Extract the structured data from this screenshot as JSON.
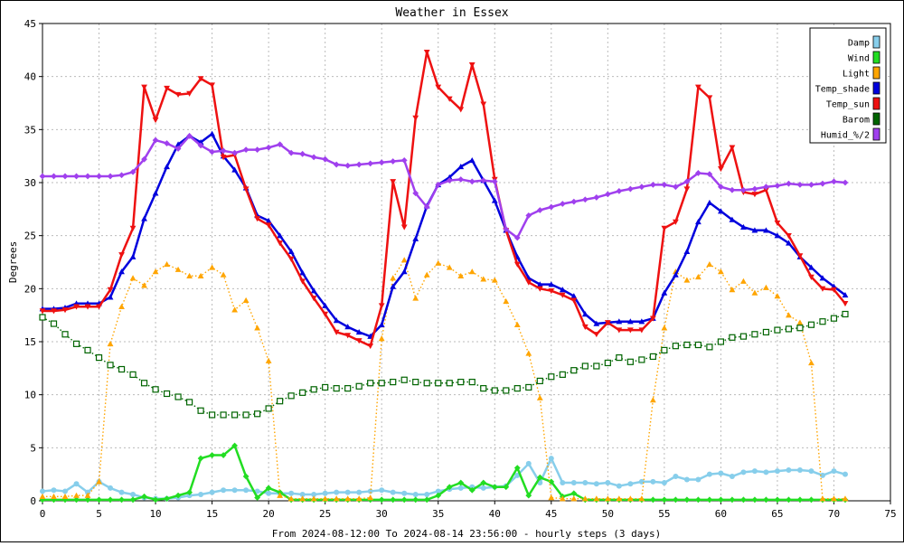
{
  "chart_data": {
    "type": "line",
    "title": "Weather in Essex",
    "ylabel": "Degrees",
    "xlabel": "From 2024-08-12:00 To 2024-08-14 23:56:00 - hourly steps (3 days)",
    "xlim": [
      0,
      75
    ],
    "ylim": [
      0,
      45
    ],
    "xticks": [
      0,
      5,
      10,
      15,
      20,
      25,
      30,
      35,
      40,
      45,
      50,
      55,
      60,
      65,
      70,
      75
    ],
    "yticks": [
      0,
      5,
      10,
      15,
      20,
      25,
      30,
      35,
      40,
      45
    ],
    "grid": true,
    "legend_position": "top-right",
    "x": [
      0,
      1,
      2,
      3,
      4,
      5,
      6,
      7,
      8,
      9,
      10,
      11,
      12,
      13,
      14,
      15,
      16,
      17,
      18,
      19,
      20,
      21,
      22,
      23,
      24,
      25,
      26,
      27,
      28,
      29,
      30,
      31,
      32,
      33,
      34,
      35,
      36,
      37,
      38,
      39,
      40,
      41,
      42,
      43,
      44,
      45,
      46,
      47,
      48,
      49,
      50,
      51,
      52,
      53,
      54,
      55,
      56,
      57,
      58,
      59,
      60,
      61,
      62,
      63,
      64,
      65,
      66,
      67,
      68,
      69,
      70,
      71
    ],
    "series": [
      {
        "name": "Damp",
        "color": "#87ceeb",
        "marker": "circle",
        "line": "solid",
        "values": [
          0.9,
          1.0,
          0.9,
          1.6,
          0.8,
          1.8,
          1.2,
          0.8,
          0.6,
          0.3,
          0.2,
          0.2,
          0.3,
          0.5,
          0.6,
          0.8,
          1.0,
          1.0,
          1.0,
          0.9,
          0.7,
          0.7,
          0.7,
          0.6,
          0.6,
          0.7,
          0.8,
          0.8,
          0.8,
          0.9,
          1.0,
          0.8,
          0.7,
          0.6,
          0.6,
          0.9,
          1.1,
          1.2,
          1.3,
          1.2,
          1.3,
          1.4,
          2.4,
          3.5,
          1.7,
          4.0,
          1.7,
          1.7,
          1.7,
          1.6,
          1.7,
          1.4,
          1.6,
          1.8,
          1.8,
          1.7,
          2.3,
          2.0,
          2.0,
          2.5,
          2.6,
          2.3,
          2.7,
          2.8,
          2.7,
          2.8,
          2.9,
          2.9,
          2.8,
          2.4,
          2.8,
          2.5
        ]
      },
      {
        "name": "Wind",
        "color": "#22dd22",
        "marker": "diamond",
        "line": "solid",
        "values": [
          0.1,
          0.1,
          0.1,
          0.1,
          0.1,
          0.1,
          0.1,
          0.1,
          0.1,
          0.4,
          0.1,
          0.2,
          0.5,
          0.8,
          4.0,
          4.3,
          4.3,
          5.2,
          2.3,
          0.3,
          1.2,
          0.8,
          0.1,
          0.1,
          0.1,
          0.1,
          0.1,
          0.1,
          0.1,
          0.1,
          0.1,
          0.1,
          0.1,
          0.1,
          0.1,
          0.5,
          1.3,
          1.7,
          1.0,
          1.7,
          1.3,
          1.3,
          3.1,
          0.5,
          2.2,
          1.8,
          0.4,
          0.7,
          0.1,
          0.1,
          0.1,
          0.1,
          0.1,
          0.1,
          0.1,
          0.1,
          0.1,
          0.1,
          0.1,
          0.1,
          0.1,
          0.1,
          0.1,
          0.1,
          0.1,
          0.1,
          0.1,
          0.1,
          0.1,
          0.1,
          0.1,
          0.1
        ]
      },
      {
        "name": "Light",
        "color": "#ffa500",
        "marker": "triangle-up",
        "line": "dotted",
        "values": [
          0.4,
          0.4,
          0.4,
          0.5,
          0.5,
          1.8,
          14.8,
          18.3,
          21.0,
          20.3,
          21.6,
          22.3,
          21.8,
          21.2,
          21.2,
          22.0,
          21.3,
          18.0,
          18.9,
          16.3,
          13.2,
          0.5,
          0.2,
          0.2,
          0.2,
          0.2,
          0.2,
          0.2,
          0.2,
          0.3,
          15.3,
          21.0,
          22.7,
          19.1,
          21.3,
          22.4,
          22.0,
          21.2,
          21.6,
          20.9,
          20.8,
          18.8,
          16.6,
          13.9,
          9.7,
          0.3,
          0.2,
          0.2,
          0.2,
          0.2,
          0.2,
          0.2,
          0.2,
          0.2,
          9.5,
          16.3,
          21.6,
          20.8,
          21.1,
          22.3,
          21.6,
          19.9,
          20.7,
          19.6,
          20.1,
          19.3,
          17.5,
          16.8,
          13.0,
          0.2,
          0.2,
          0.2
        ]
      },
      {
        "name": "Temp_shade",
        "color": "#0000dd",
        "marker": "triangle-up",
        "line": "solid",
        "values": [
          18.1,
          18.1,
          18.2,
          18.6,
          18.6,
          18.6,
          19.2,
          21.6,
          23.0,
          26.6,
          29.0,
          31.5,
          33.6,
          34.4,
          33.8,
          34.6,
          32.5,
          31.2,
          29.5,
          26.9,
          26.4,
          25.0,
          23.5,
          21.5,
          19.8,
          18.4,
          17.0,
          16.4,
          15.9,
          15.5,
          16.6,
          20.2,
          21.6,
          24.7,
          27.8,
          29.8,
          30.5,
          31.5,
          32.1,
          30.2,
          28.3,
          25.5,
          23.0,
          21.0,
          20.4,
          20.4,
          19.9,
          19.3,
          17.6,
          16.7,
          16.8,
          16.9,
          16.9,
          16.9,
          17.2,
          19.6,
          21.3,
          23.5,
          26.3,
          28.1,
          27.3,
          26.5,
          25.8,
          25.5,
          25.5,
          25.0,
          24.3,
          23.0,
          22.0,
          21.0,
          20.2,
          19.4
        ]
      },
      {
        "name": "Temp_sun",
        "color": "#ee1111",
        "marker": "triangle-down",
        "line": "solid",
        "values": [
          17.9,
          17.9,
          18.0,
          18.3,
          18.3,
          18.3,
          19.9,
          23.2,
          25.7,
          39.0,
          35.9,
          38.9,
          38.3,
          38.4,
          39.8,
          39.2,
          32.4,
          32.6,
          29.4,
          26.6,
          26.0,
          24.3,
          22.8,
          20.7,
          19.1,
          17.6,
          15.9,
          15.6,
          15.1,
          14.6,
          18.4,
          30.1,
          25.8,
          36.1,
          42.3,
          39.0,
          37.9,
          36.9,
          41.1,
          37.4,
          30.3,
          25.5,
          22.3,
          20.6,
          20.0,
          19.8,
          19.4,
          18.9,
          16.4,
          15.7,
          16.8,
          16.1,
          16.1,
          16.1,
          17.2,
          25.7,
          26.3,
          29.4,
          39.0,
          38.0,
          31.3,
          33.3,
          29.1,
          28.9,
          29.3,
          26.2,
          25.0,
          23.1,
          21.1,
          20.0,
          19.9,
          18.6
        ]
      },
      {
        "name": "Barom",
        "color": "#006400",
        "marker": "square",
        "line": "dotted",
        "values": [
          17.3,
          16.7,
          15.7,
          14.8,
          14.2,
          13.5,
          12.8,
          12.4,
          11.9,
          11.1,
          10.5,
          10.1,
          9.8,
          9.3,
          8.5,
          8.1,
          8.1,
          8.1,
          8.1,
          8.2,
          8.7,
          9.4,
          9.9,
          10.2,
          10.5,
          10.7,
          10.6,
          10.6,
          10.8,
          11.1,
          11.1,
          11.2,
          11.4,
          11.2,
          11.1,
          11.1,
          11.1,
          11.2,
          11.2,
          10.6,
          10.4,
          10.4,
          10.6,
          10.7,
          11.3,
          11.7,
          11.9,
          12.3,
          12.7,
          12.7,
          13.0,
          13.5,
          13.1,
          13.3,
          13.6,
          14.2,
          14.6,
          14.7,
          14.7,
          14.5,
          15.0,
          15.4,
          15.5,
          15.7,
          15.9,
          16.1,
          16.2,
          16.3,
          16.6,
          16.9,
          17.2,
          17.6
        ]
      },
      {
        "name": "Humid_%/2",
        "color": "#a040ee",
        "marker": "diamond",
        "line": "solid",
        "values": [
          30.6,
          30.6,
          30.6,
          30.6,
          30.6,
          30.6,
          30.6,
          30.7,
          31.0,
          32.2,
          34.0,
          33.7,
          33.2,
          34.4,
          33.5,
          32.9,
          33.0,
          32.8,
          33.1,
          33.1,
          33.3,
          33.6,
          32.8,
          32.7,
          32.4,
          32.2,
          31.7,
          31.6,
          31.7,
          31.8,
          31.9,
          32.0,
          32.1,
          29.0,
          27.7,
          29.8,
          30.2,
          30.3,
          30.1,
          30.2,
          30.1,
          25.6,
          24.8,
          26.9,
          27.4,
          27.7,
          28.0,
          28.2,
          28.4,
          28.6,
          28.9,
          29.2,
          29.4,
          29.6,
          29.8,
          29.8,
          29.6,
          30.1,
          30.9,
          30.8,
          29.6,
          29.3,
          29.3,
          29.4,
          29.6,
          29.7,
          29.9,
          29.8,
          29.8,
          29.9,
          30.1,
          30.0
        ]
      }
    ]
  }
}
